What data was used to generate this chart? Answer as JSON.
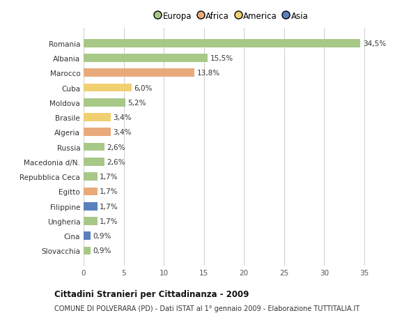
{
  "countries": [
    "Romania",
    "Albania",
    "Marocco",
    "Cuba",
    "Moldova",
    "Brasile",
    "Algeria",
    "Russia",
    "Macedonia d/N.",
    "Repubblica Ceca",
    "Egitto",
    "Filippine",
    "Ungheria",
    "Cina",
    "Slovacchia"
  ],
  "values": [
    34.5,
    15.5,
    13.8,
    6.0,
    5.2,
    3.4,
    3.4,
    2.6,
    2.6,
    1.7,
    1.7,
    1.7,
    1.7,
    0.9,
    0.9
  ],
  "labels": [
    "34,5%",
    "15,5%",
    "13,8%",
    "6,0%",
    "5,2%",
    "3,4%",
    "3,4%",
    "2,6%",
    "2,6%",
    "1,7%",
    "1,7%",
    "1,7%",
    "1,7%",
    "0,9%",
    "0,9%"
  ],
  "continents": [
    "Europa",
    "Europa",
    "Africa",
    "America",
    "Europa",
    "America",
    "Africa",
    "Europa",
    "Europa",
    "Europa",
    "Africa",
    "Asia",
    "Europa",
    "Asia",
    "Europa"
  ],
  "colors": {
    "Europa": "#a8c888",
    "Africa": "#e8aa7a",
    "America": "#f0d070",
    "Asia": "#5a80c0"
  },
  "legend_order": [
    "Europa",
    "Africa",
    "America",
    "Asia"
  ],
  "title": "Cittadini Stranieri per Cittadinanza - 2009",
  "subtitle": "COMUNE DI POLVERARA (PD) - Dati ISTAT al 1° gennaio 2009 - Elaborazione TUTTITALIA.IT",
  "xlim": [
    0,
    37
  ],
  "xticks": [
    0,
    5,
    10,
    15,
    20,
    25,
    30,
    35
  ],
  "background_color": "#ffffff",
  "grid_color": "#cccccc"
}
